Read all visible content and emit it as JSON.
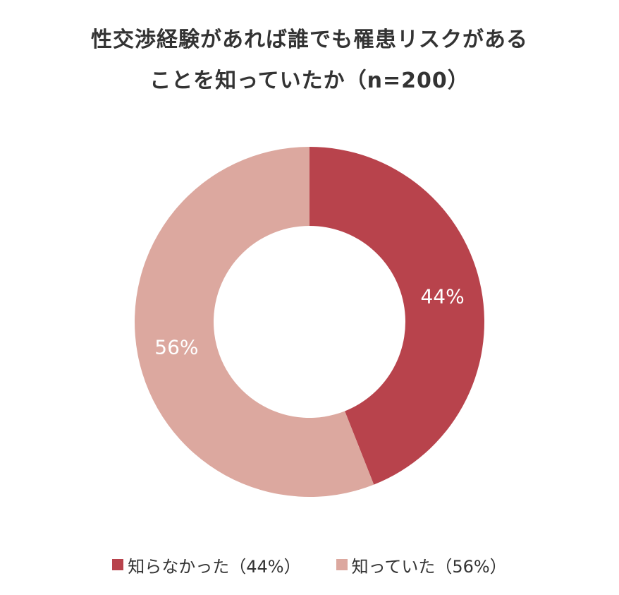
{
  "chart_data": {
    "type": "pie",
    "donut": true,
    "title_lines": [
      "性交渉経験があれば誰でも罹患リスクがある",
      "ことを知っていたか（n=200）"
    ],
    "slices": [
      {
        "label": "知らなかった（44%）",
        "value": 44,
        "data_label": "44%",
        "color": "#b8434c"
      },
      {
        "label": "知っていた（56%）",
        "value": 56,
        "data_label": "56%",
        "color": "#dca89f"
      }
    ],
    "start_angle_deg": 0,
    "direction": "clockwise",
    "legend_position": "bottom"
  }
}
